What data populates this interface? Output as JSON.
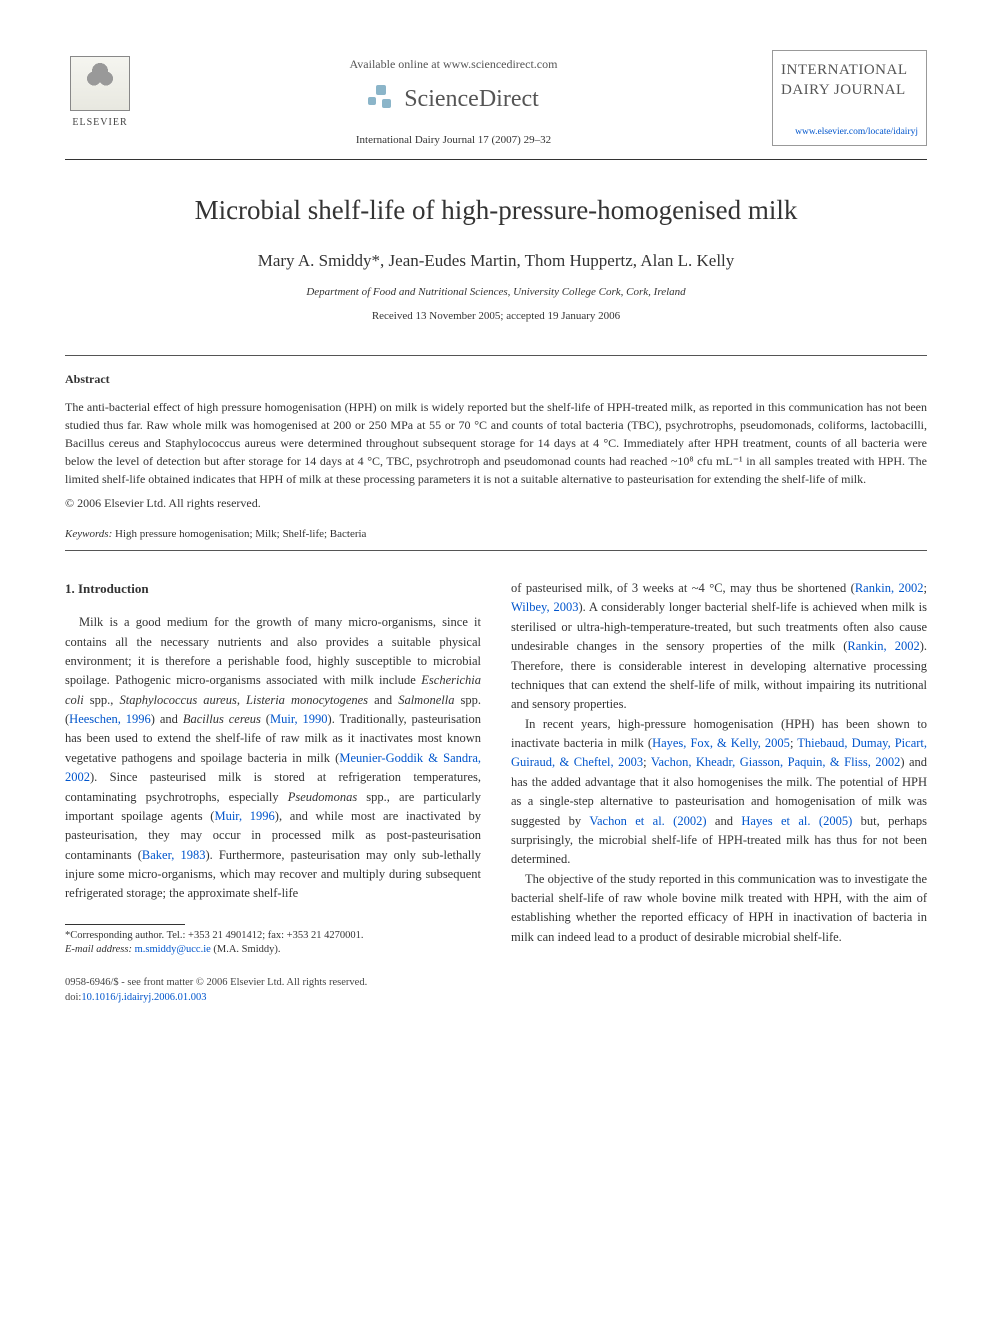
{
  "header": {
    "available_online": "Available online at www.sciencedirect.com",
    "sciencedirect": "ScienceDirect",
    "journal_ref": "International Dairy Journal 17 (2007) 29–32",
    "elsevier": "ELSEVIER",
    "journal_box_title": "INTERNATIONAL DAIRY JOURNAL",
    "journal_box_link": "www.elsevier.com/locate/idairyj"
  },
  "article": {
    "title": "Microbial shelf-life of high-pressure-homogenised milk",
    "authors": "Mary A. Smiddy*, Jean-Eudes Martin, Thom Huppertz, Alan L. Kelly",
    "affiliation": "Department of Food and Nutritional Sciences, University College Cork, Cork, Ireland",
    "dates": "Received 13 November 2005; accepted 19 January 2006"
  },
  "abstract": {
    "heading": "Abstract",
    "text": "The anti-bacterial effect of high pressure homogenisation (HPH) on milk is widely reported but the shelf-life of HPH-treated milk, as reported in this communication has not been studied thus far. Raw whole milk was homogenised at 200 or 250 MPa at 55 or 70 °C and counts of total bacteria (TBC), psychrotrophs, pseudomonads, coliforms, lactobacilli, Bacillus cereus and Staphylococcus aureus were determined throughout subsequent storage for 14 days at 4 °C. Immediately after HPH treatment, counts of all bacteria were below the level of detection but after storage for 14 days at 4 °C, TBC, psychrotroph and pseudomonad counts had reached ~10⁸ cfu mL⁻¹ in all samples treated with HPH. The limited shelf-life obtained indicates that HPH of milk at these processing parameters it is not a suitable alternative to pasteurisation for extending the shelf-life of milk.",
    "copyright": "© 2006 Elsevier Ltd. All rights reserved."
  },
  "keywords": {
    "label": "Keywords:",
    "text": " High pressure homogenisation; Milk; Shelf-life; Bacteria"
  },
  "section1": {
    "heading": "1. Introduction"
  },
  "body": {
    "p1a": "Milk is a good medium for the growth of many micro-organisms, since it contains all the necessary nutrients and also provides a suitable physical environment; it is therefore a perishable food, highly susceptible to microbial spoilage. Pathogenic micro-organisms associated with milk include ",
    "ecoli": "Escherichia coli",
    "p1b": " spp., ",
    "staph": "Staphylococcus aureus",
    "p1c": ", ",
    "listeria": "Listeria monocytogenes",
    "p1d": " and ",
    "salm": "Salmonella",
    "p1e": " spp. (",
    "ref_heeschen": "Heeschen, 1996",
    "p1f": ") and ",
    "bacillus": "Bacillus cereus",
    "p1g": " (",
    "ref_muir90": "Muir, 1990",
    "p1h": "). Traditionally, pasteurisation has been used to extend the shelf-life of raw milk as it inactivates most known vegetative pathogens and spoilage bacteria in milk (",
    "ref_meunier": "Meunier-Goddik & Sandra, 2002",
    "p1i": "). Since pasteurised milk is stored at refrigeration temperatures, contaminating psychrotrophs, especially ",
    "pseudo": "Pseudomonas",
    "p1j": " spp., are particularly important spoilage agents (",
    "ref_muir96": "Muir, 1996",
    "p1k": "), and while most are inactivated by pasteurisation, they may occur in processed milk as post-pasteurisation contaminants (",
    "ref_baker": "Baker, 1983",
    "p1l": "). Furthermore, pasteurisation may only sub-lethally injure some micro-organisms, which may recover and multiply during subsequent refrigerated storage; the approximate shelf-life",
    "p2a": "of pasteurised milk, of 3 weeks at ~4 °C, may thus be shortened (",
    "ref_rankin1": "Rankin, 2002",
    "p2b": "; ",
    "ref_wilbey": "Wilbey, 2003",
    "p2c": "). A considerably longer bacterial shelf-life is achieved when milk is sterilised or ultra-high-temperature-treated, but such treatments often also cause undesirable changes in the sensory properties of the milk (",
    "ref_rankin2": "Rankin, 2002",
    "p2d": "). Therefore, there is considerable interest in developing alternative processing techniques that can extend the shelf-life of milk, without impairing its nutritional and sensory properties.",
    "p3a": "In recent years, high-pressure homogenisation (HPH) has been shown to inactivate bacteria in milk (",
    "ref_hayes": "Hayes, Fox, & Kelly, 2005",
    "p3b": "; ",
    "ref_thiebaud": "Thiebaud, Dumay, Picart, Guiraud, & Cheftel, 2003",
    "p3c": "; ",
    "ref_vachon": "Vachon, Kheadr, Giasson, Paquin, & Fliss, 2002",
    "p3d": ") and has the added advantage that it also homogenises the milk. The potential of HPH as a single-step alternative to pasteurisation and homogenisation of milk was suggested by ",
    "ref_vachon2": "Vachon et al. (2002)",
    "p3e": " and ",
    "ref_hayes2": "Hayes et al. (2005)",
    "p3f": " but, perhaps surprisingly, the microbial shelf-life of HPH-treated milk has thus for not been determined.",
    "p4": "The objective of the study reported in this communication was to investigate the bacterial shelf-life of raw whole bovine milk treated with HPH, with the aim of establishing whether the reported efficacy of HPH in inactivation of bacteria in milk can indeed lead to a product of desirable microbial shelf-life."
  },
  "footnote": {
    "corr": "*Corresponding author. Tel.: +353 21 4901412; fax: +353 21 4270001.",
    "email_label": "E-mail address:",
    "email": " m.smiddy@ucc.ie",
    "email_tail": " (M.A. Smiddy)."
  },
  "footer": {
    "issn": "0958-6946/$ - see front matter © 2006 Elsevier Ltd. All rights reserved.",
    "doi_label": "doi:",
    "doi": "10.1016/j.idairyj.2006.01.003"
  }
}
